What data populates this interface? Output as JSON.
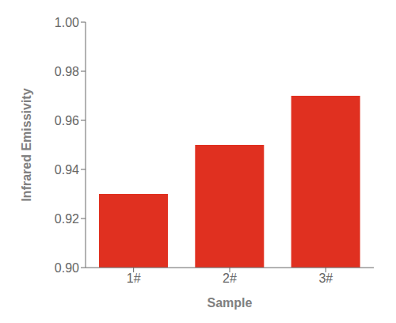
{
  "chart_data": {
    "type": "bar",
    "categories": [
      "1#",
      "2#",
      "3#"
    ],
    "values": [
      0.93,
      0.95,
      0.97
    ],
    "color": "#E03020",
    "xlabel": "Sample",
    "ylabel": "Infrared Emissivity",
    "ylim": [
      0.9,
      1.0
    ],
    "yticks": [
      {
        "value": 0.9,
        "label": "0.90"
      },
      0.92,
      0.94,
      0.96,
      0.98,
      {
        "value": 1.0,
        "label": "1.00"
      }
    ],
    "grid": false
  }
}
